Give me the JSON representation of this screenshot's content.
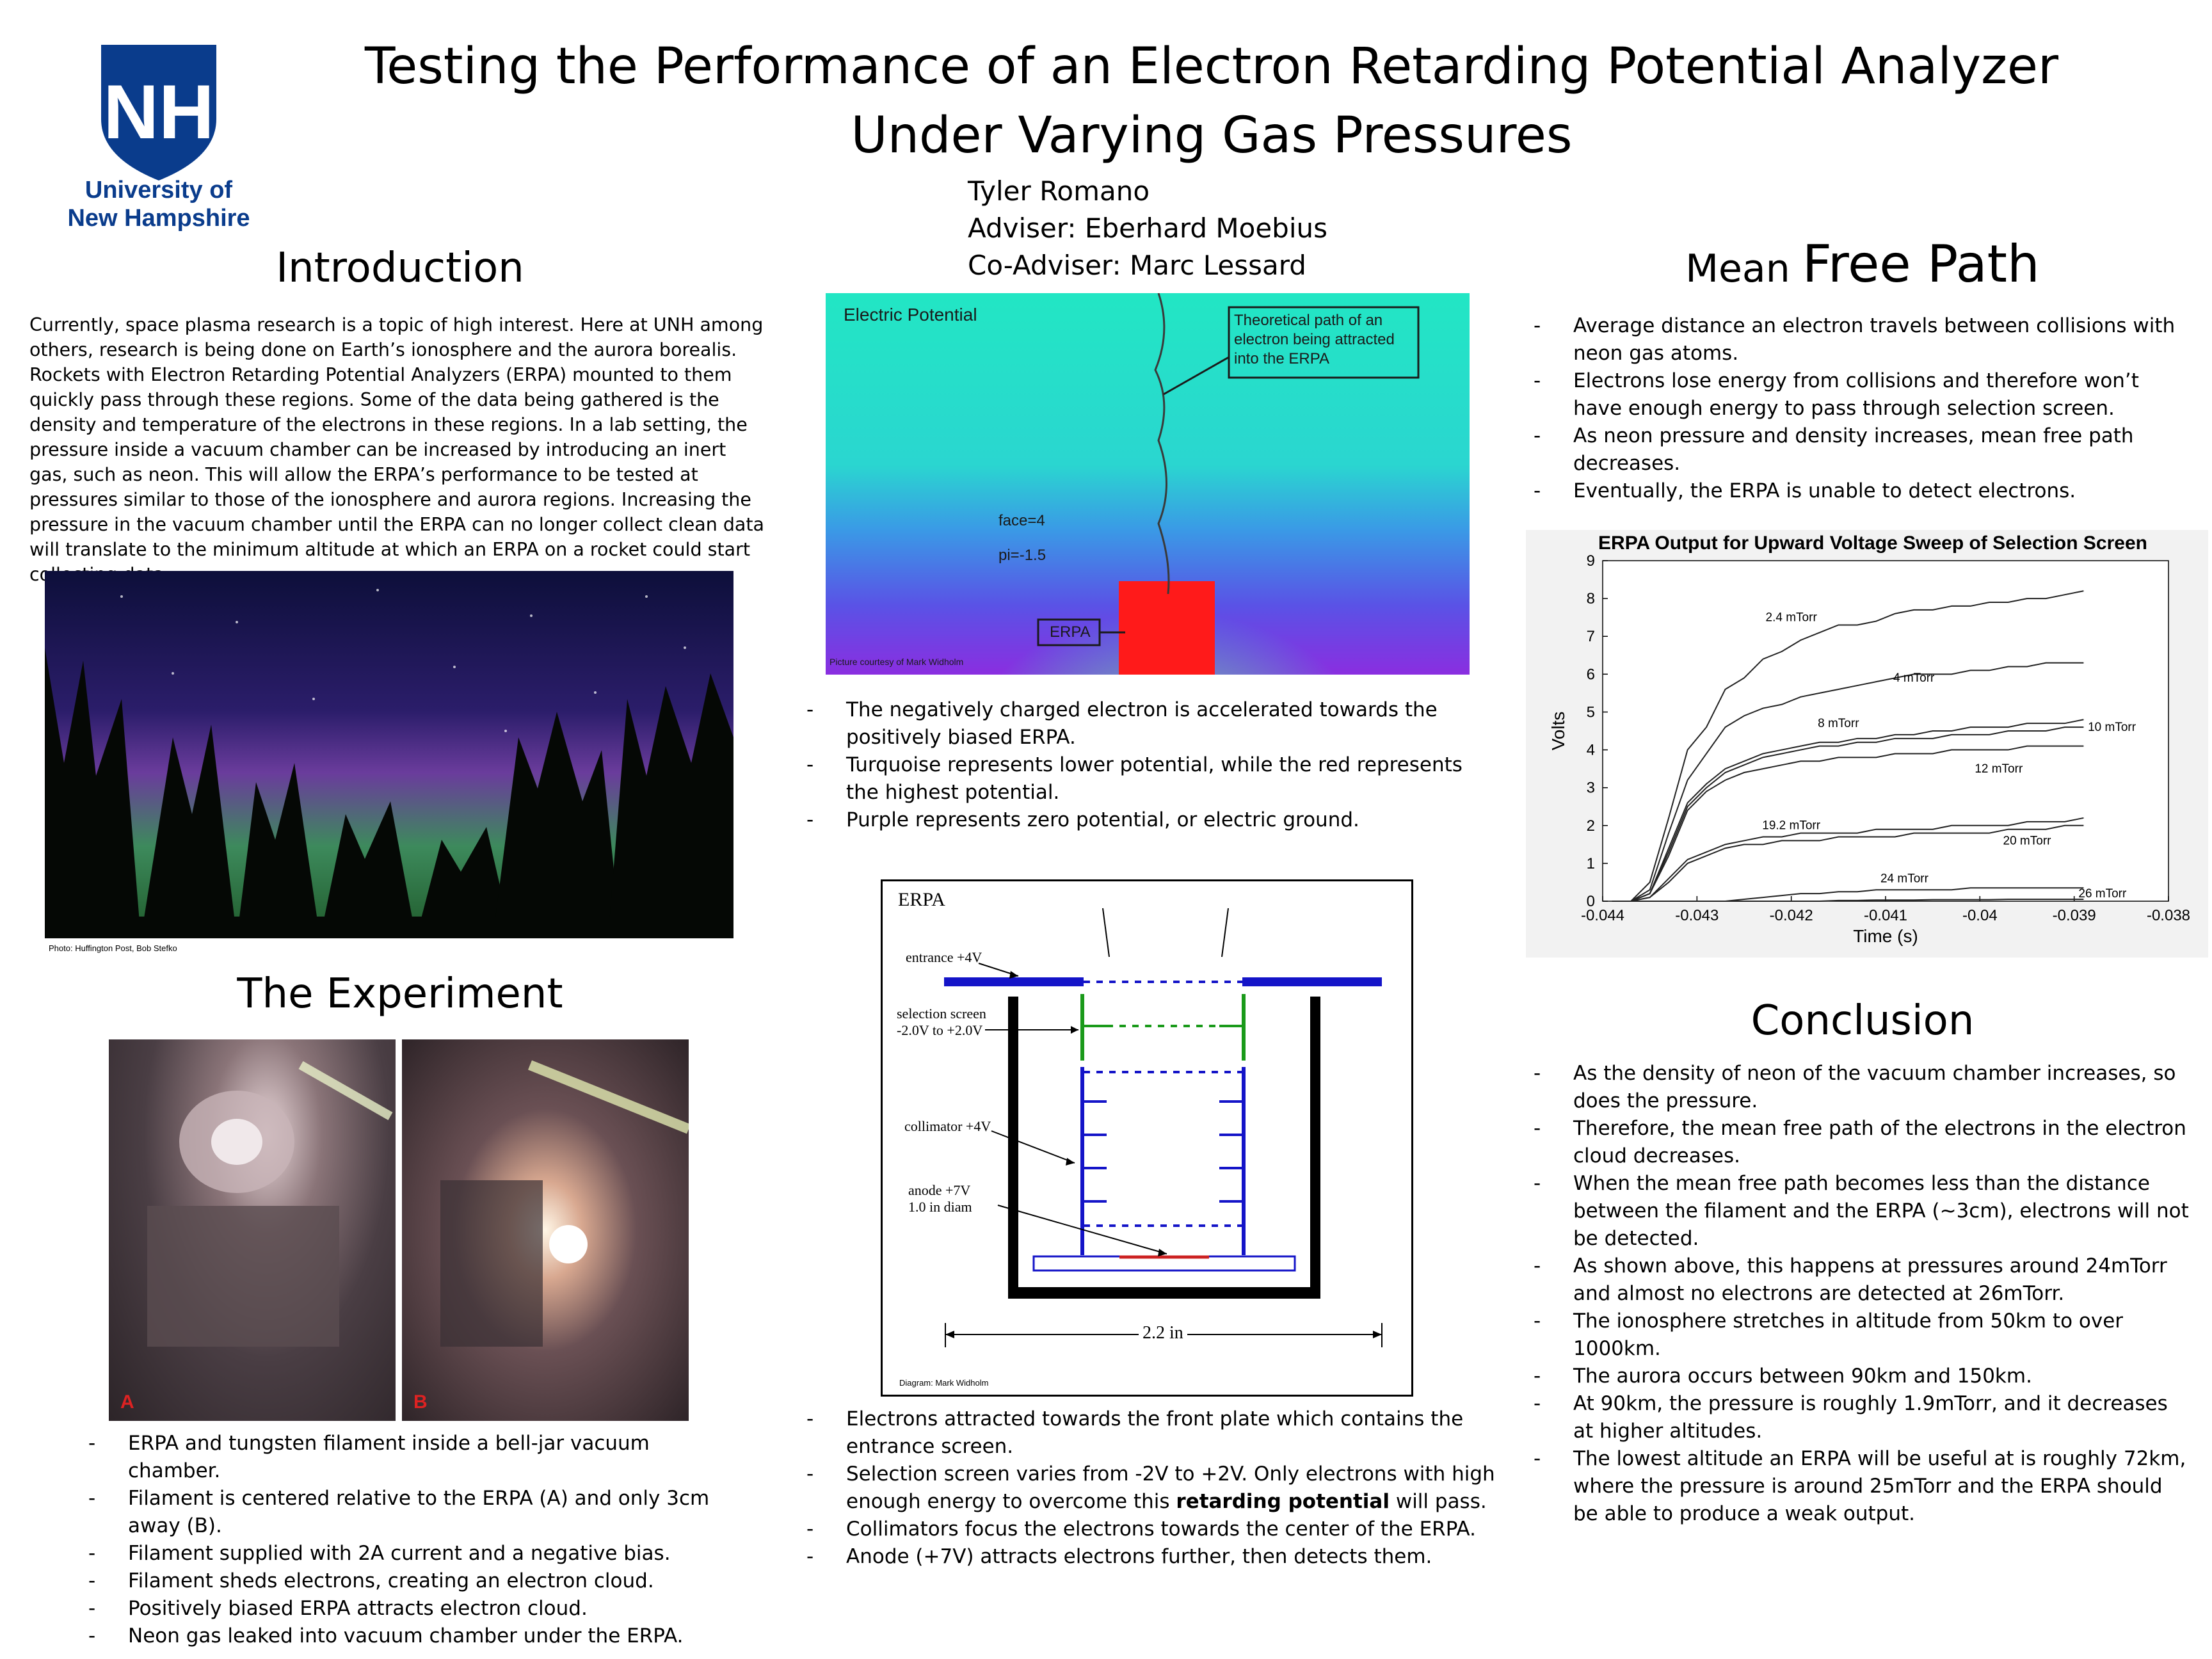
{
  "logo": {
    "initials": "NH",
    "line1": "University of",
    "line2": "New Hampshire",
    "color": "#0a3c8c"
  },
  "title": {
    "line1": "Testing the Performance of an Electron Retarding Potential Analyzer",
    "line2": "Under Varying Gas Pressures"
  },
  "authors": [
    "Tyler Romano",
    "Adviser: Eberhard Moebius",
    "Co-Adviser: Marc Lessard"
  ],
  "introduction": {
    "heading": "Introduction",
    "text": "Currently, space plasma research is a topic of high interest.  Here at UNH among others, research is being done on Earth’s ionosphere and the aurora borealis.  Rockets with Electron Retarding Potential Analyzers (ERPA) mounted to them quickly pass through these regions. Some of the data being gathered is the density and temperature of the electrons in these regions.  In a lab setting, the pressure inside a vacuum chamber can be increased by introducing an inert gas, such as neon.  This will allow the ERPA’s performance to be tested at pressures similar to those of the ionosphere and aurora regions.  Increasing the pressure in the vacuum chamber until the ERPA can no longer collect clean data will translate to the minimum altitude at which an ERPA on a rocket could start collecting data.",
    "photo_caption": "Photo: Huffington Post, Bob Stefko"
  },
  "experiment": {
    "heading": "The Experiment",
    "photo_a": "A",
    "photo_b": "B",
    "bullets": [
      "ERPA and tungsten filament inside a bell-jar vacuum chamber.",
      "Filament is centered relative to the ERPA (A) and only 3cm away (B).",
      "Filament supplied with 2A current and a negative bias.",
      "Filament sheds electrons, creating an electron cloud.",
      "Positively biased ERPA attracts electron cloud.",
      "Neon gas leaked into vacuum chamber under the ERPA."
    ]
  },
  "potential": {
    "label": "Electric Potential",
    "callout": "Theoretical path of an electron being attracted into the ERPA",
    "face": "face=4",
    "pi": "pi=-1.5",
    "erpa": "ERPA",
    "credit": "Picture courtesy of Mark Widholm",
    "bullets": [
      "The negatively charged electron is accelerated towards the positively biased ERPA.",
      "Turquoise represents lower potential, while the red represents the highest potential.",
      "Purple represents zero potential, or electric ground."
    ]
  },
  "diagram": {
    "title": "ERPA",
    "entrance": "entrance +4V",
    "selection1": "selection screen",
    "selection2": "-2.0V to +2.0V",
    "collimator": "collimator +4V",
    "anode1": "anode +7V",
    "anode2": "1.0 in diam",
    "width": "2.2 in",
    "credit": "Diagram: Mark Widholm",
    "colors": {
      "plate": "#1414c8",
      "screen": "#1a9a1a",
      "anode": "#cc2222"
    },
    "bullets": [
      "Electrons attracted towards the front plate which contains the entrance screen.",
      "Selection screen varies from -2V to +2V.  Only electrons with high enough energy to overcome this ",
      "Collimators focus the electrons towards the center of the ERPA.",
      "Anode (+7V) attracts electrons further, then detects them."
    ],
    "bold_phrase": "retarding potential",
    "bullet2_end": " will pass."
  },
  "mfp": {
    "heading_small": "Mean ",
    "heading_large": "Free Path",
    "bullets": [
      "Average distance an electron travels between collisions with neon gas atoms.",
      "Electrons lose energy from collisions and therefore won’t have enough energy to pass through selection screen.",
      "As neon pressure and density increases, mean free path decreases.",
      "Eventually, the ERPA is unable to detect electrons."
    ]
  },
  "chart_data": {
    "type": "line",
    "title": "ERPA Output for Upward Voltage Sweep of Selection Screen",
    "xlabel": "Time (s)",
    "ylabel": "Volts",
    "xlim": [
      -0.044,
      -0.038
    ],
    "ylim": [
      0,
      9
    ],
    "xticks": [
      "-0.044",
      "-0.043",
      "-0.042",
      "-0.041",
      "-0.04",
      "-0.039",
      "-0.038"
    ],
    "yticks": [
      "0",
      "1",
      "2",
      "3",
      "4",
      "5",
      "6",
      "7",
      "8",
      "9"
    ],
    "x": [
      -0.0439,
      -0.0437,
      -0.0435,
      -0.0433,
      -0.0431,
      -0.0429,
      -0.0427,
      -0.0425,
      -0.0423,
      -0.0421,
      -0.0419,
      -0.0417,
      -0.0415,
      -0.0413,
      -0.0411,
      -0.0409,
      -0.0407,
      -0.0405,
      -0.0403,
      -0.0401,
      -0.0399,
      -0.0397,
      -0.0395,
      -0.0393,
      -0.0391,
      -0.0389
    ],
    "series": [
      {
        "name": "2.4 mTorr",
        "label_at": [
          -0.042,
          7.4
        ],
        "values": [
          0,
          0,
          0.5,
          2.2,
          4.0,
          4.6,
          5.6,
          5.9,
          6.4,
          6.6,
          6.9,
          7.1,
          7.3,
          7.3,
          7.4,
          7.6,
          7.7,
          7.7,
          7.8,
          7.8,
          7.9,
          7.9,
          8.0,
          8.0,
          8.1,
          8.2
        ]
      },
      {
        "name": "4 mTorr",
        "label_at": [
          -0.0407,
          5.8
        ],
        "values": [
          0,
          0,
          0.3,
          1.8,
          3.2,
          3.9,
          4.6,
          4.9,
          5.1,
          5.2,
          5.4,
          5.5,
          5.6,
          5.7,
          5.8,
          5.9,
          6.0,
          6.0,
          6.0,
          6.1,
          6.1,
          6.2,
          6.2,
          6.3,
          6.3,
          6.3
        ]
      },
      {
        "name": "8 mTorr",
        "label_at": [
          -0.0415,
          4.6
        ],
        "values": [
          0,
          0,
          0.2,
          1.4,
          2.6,
          3.1,
          3.5,
          3.7,
          3.9,
          4.0,
          4.1,
          4.2,
          4.2,
          4.3,
          4.3,
          4.4,
          4.4,
          4.5,
          4.5,
          4.6,
          4.6,
          4.6,
          4.7,
          4.7,
          4.7,
          4.8
        ]
      },
      {
        "name": "10 mTorr",
        "label_at": [
          -0.0386,
          4.5
        ],
        "values": [
          0,
          0,
          0.2,
          1.3,
          2.5,
          3.0,
          3.4,
          3.6,
          3.8,
          3.9,
          4.0,
          4.1,
          4.1,
          4.2,
          4.2,
          4.3,
          4.3,
          4.3,
          4.4,
          4.4,
          4.4,
          4.5,
          4.5,
          4.5,
          4.6,
          4.6
        ]
      },
      {
        "name": "12 mTorr",
        "label_at": [
          -0.0398,
          3.4
        ],
        "values": [
          0,
          0,
          0.2,
          1.2,
          2.4,
          2.9,
          3.2,
          3.4,
          3.5,
          3.6,
          3.7,
          3.7,
          3.8,
          3.8,
          3.8,
          3.9,
          3.9,
          3.9,
          4.0,
          4.0,
          4.0,
          4.0,
          4.1,
          4.1,
          4.1,
          4.1
        ]
      },
      {
        "name": "19.2 mTorr",
        "label_at": [
          -0.042,
          1.9
        ],
        "values": [
          0,
          0,
          0.1,
          0.6,
          1.1,
          1.3,
          1.5,
          1.6,
          1.7,
          1.7,
          1.8,
          1.8,
          1.8,
          1.8,
          1.9,
          1.9,
          1.9,
          1.9,
          2.0,
          2.0,
          2.0,
          2.0,
          2.1,
          2.1,
          2.1,
          2.2
        ]
      },
      {
        "name": "20 mTorr",
        "label_at": [
          -0.0395,
          1.5
        ],
        "values": [
          0,
          0,
          0.1,
          0.5,
          1.0,
          1.2,
          1.4,
          1.5,
          1.5,
          1.6,
          1.6,
          1.6,
          1.7,
          1.7,
          1.7,
          1.7,
          1.8,
          1.8,
          1.8,
          1.8,
          1.8,
          1.9,
          1.9,
          1.9,
          2.0,
          2.0
        ]
      },
      {
        "name": "24 mTorr",
        "label_at": [
          -0.0408,
          0.5
        ],
        "values": [
          0,
          0,
          0,
          0,
          0,
          0,
          0,
          0.05,
          0.1,
          0.15,
          0.2,
          0.2,
          0.25,
          0.25,
          0.3,
          0.3,
          0.3,
          0.3,
          0.3,
          0.35,
          0.35,
          0.35,
          0.35,
          0.35,
          0.35,
          0.35
        ]
      },
      {
        "name": "26 mTorr",
        "label_at": [
          -0.0387,
          0.1
        ],
        "values": [
          0,
          0,
          0,
          0,
          0,
          0,
          0,
          0,
          0,
          0,
          0,
          0,
          0.02,
          0.02,
          0.03,
          0.03,
          0.03,
          0.04,
          0.04,
          0.04,
          0.04,
          0.05,
          0.05,
          0.05,
          0.05,
          0.05
        ]
      }
    ]
  },
  "conclusion": {
    "heading": "Conclusion",
    "bullets": [
      "As the density of neon of the vacuum chamber increases, so does the pressure.",
      "Therefore, the mean free path of the electrons in the electron cloud decreases.",
      "When the mean free path becomes less than the distance between the filament and the ERPA (~3cm), electrons will not be detected.",
      "As shown above, this happens at pressures around 24mTorr and almost no electrons are detected at 26mTorr.",
      "The ionosphere stretches in altitude from 50km to over 1000km.",
      "The aurora occurs between 90km and 150km.",
      "At 90km, the pressure is roughly 1.9mTorr, and it decreases at higher altitudes.",
      "The lowest altitude an ERPA will be useful at is roughly 72km, where the pressure is around 25mTorr and the ERPA should be able to produce a weak output."
    ]
  }
}
